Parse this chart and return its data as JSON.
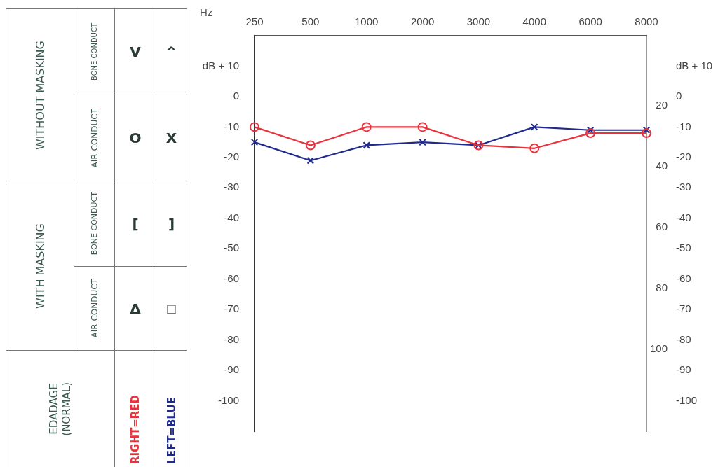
{
  "chart_data": {
    "type": "line",
    "xlabel": "Hz",
    "categories": [
      "250",
      "500",
      "1000",
      "2000",
      "3000",
      "4000",
      "6000",
      "8000"
    ],
    "series": [
      {
        "name": "RIGHT=RED",
        "color": "#e8323c",
        "marker": "circle",
        "values": [
          -10,
          -16,
          -10,
          -10,
          -16,
          -17,
          -12,
          -12
        ]
      },
      {
        "name": "LEFT=BLUE",
        "color": "#1f2a8c",
        "marker": "cross",
        "values": [
          -15,
          -21,
          -16,
          -15,
          -16,
          -10,
          -11,
          -11
        ]
      }
    ],
    "ylim": [
      -110,
      20
    ],
    "yticks": [
      {
        "value": 10,
        "label": "dB + 10"
      },
      0,
      -10,
      -20,
      -30,
      -40,
      -50,
      -60,
      -70,
      -80,
      -90,
      -100
    ],
    "y2lim": [
      -110,
      20
    ],
    "y2ticks": [
      {
        "value": 10,
        "label": "dB + 10"
      },
      0,
      -10,
      -20,
      -30,
      -40,
      -50,
      -60,
      -70,
      -80,
      -90,
      -100
    ],
    "y3lim": [
      127,
      -3
    ],
    "y3ticks": [
      20,
      40,
      60,
      80,
      100
    ],
    "annotations": [
      "WITHOUT MASKING",
      "BONE CONDUCT",
      "V",
      "^",
      "AIR CONDUCT",
      "O",
      "X",
      "WITH MASKING",
      "BONE CONDUCT",
      "[",
      "]",
      "AIR CONDUCT",
      "Δ",
      "□",
      "EDADAGE (NORMAL)"
    ],
    "legend": "left",
    "line_style": "solid",
    "grid": false
  }
}
